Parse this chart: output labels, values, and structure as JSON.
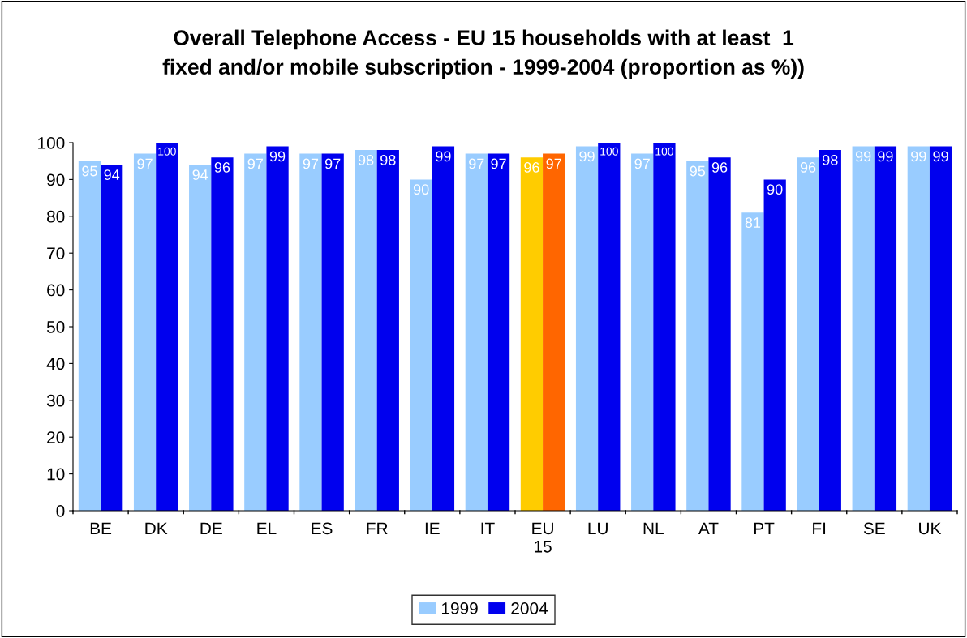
{
  "chart_data": {
    "type": "bar",
    "title": "Overall Telephone Access - EU 15 households with at least  1\nfixed and/or mobile subscription - 1999-2004 (proportion as %))",
    "categories": [
      "BE",
      "DK",
      "DE",
      "EL",
      "ES",
      "FR",
      "IE",
      "IT",
      "EU 15",
      "LU",
      "NL",
      "AT",
      "PT",
      "FI",
      "SE",
      "UK"
    ],
    "series": [
      {
        "name": "1999",
        "color": "#99ccff",
        "colors": [
          "#99ccff",
          "#99ccff",
          "#99ccff",
          "#99ccff",
          "#99ccff",
          "#99ccff",
          "#99ccff",
          "#99ccff",
          "#ffcc00",
          "#99ccff",
          "#99ccff",
          "#99ccff",
          "#99ccff",
          "#99ccff",
          "#99ccff",
          "#99ccff"
        ],
        "values": [
          95,
          97,
          94,
          97,
          97,
          98,
          90,
          97,
          96,
          99,
          97,
          95,
          81,
          96,
          99,
          99
        ]
      },
      {
        "name": "2004",
        "color": "#0000ee",
        "colors": [
          "#0000ee",
          "#0000ee",
          "#0000ee",
          "#0000ee",
          "#0000ee",
          "#0000ee",
          "#0000ee",
          "#0000ee",
          "#ff6600",
          "#0000ee",
          "#0000ee",
          "#0000ee",
          "#0000ee",
          "#0000ee",
          "#0000ee",
          "#0000ee"
        ],
        "values": [
          94,
          100,
          96,
          99,
          97,
          98,
          99,
          97,
          97,
          100,
          100,
          96,
          90,
          98,
          99,
          99
        ]
      }
    ],
    "ylim": [
      0,
      100
    ],
    "yticks": [
      0,
      10,
      20,
      30,
      40,
      50,
      60,
      70,
      80,
      90,
      100
    ],
    "grid": false,
    "legend": "bottom",
    "data_labels": true
  }
}
